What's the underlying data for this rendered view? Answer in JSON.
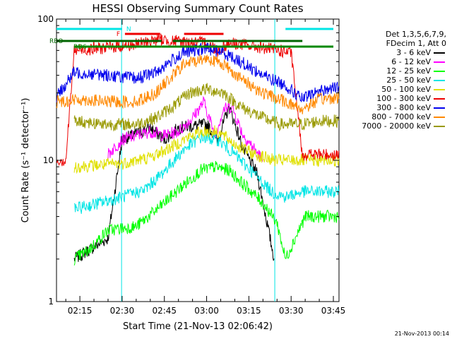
{
  "chart_data": {
    "type": "line",
    "title": "HESSI Observing Summary Count Rates",
    "xlabel": "Start Time (21-Nov-13 02:06:42)",
    "ylabel": "Count Rate (s⁻¹ detector⁻¹)",
    "y_scale": "log",
    "ylim": [
      1,
      100
    ],
    "xlim_minutes_of_day": [
      126.7,
      227.0
    ],
    "x_tick_labels": [
      "02:15",
      "02:30",
      "02:45",
      "03:00",
      "03:15",
      "03:30",
      "03:45"
    ],
    "y_tick_labels": [
      "1",
      "10",
      "100"
    ],
    "legend_header": [
      "Det 1,3,5,6,7,9,",
      "FDecim 1, Att 0"
    ],
    "timestamp": "21-Nov-2013 00:14",
    "flags": {
      "N": {
        "color": "#00e5e5",
        "segments": [
          [
            126.7,
            150
          ],
          [
            208,
            225
          ]
        ]
      },
      "F": {
        "color": "#ee0000",
        "segments": [
          [
            151,
            163.5
          ],
          [
            172,
            186
          ]
        ]
      },
      "RBO": {
        "color": "#006400",
        "segments": [
          [
            126.7,
            164
          ],
          [
            168,
            214
          ]
        ]
      },
      "RD6": {
        "color": "#008800",
        "segments": [
          [
            133,
            164
          ],
          [
            164,
            225
          ]
        ]
      }
    },
    "saa_lines": [
      {
        "time": 149.8,
        "color": "#00e5e5"
      },
      {
        "time": 204.2,
        "color": "#00e5e5"
      }
    ],
    "series": [
      {
        "name": "3 - 6 keV",
        "color": "#000000",
        "points": [
          [
            133,
            2
          ],
          [
            145,
            2.8
          ],
          [
            150,
            14
          ],
          [
            160,
            17
          ],
          [
            165,
            14
          ],
          [
            170,
            17
          ],
          [
            180,
            18
          ],
          [
            184,
            14
          ],
          [
            188,
            24
          ],
          [
            193,
            12
          ],
          [
            198,
            8
          ],
          [
            204,
            2
          ]
        ]
      },
      {
        "name": "6 - 12 keV",
        "color": "#ff00ff",
        "points": [
          [
            145,
            11
          ],
          [
            150,
            14
          ],
          [
            160,
            16
          ],
          [
            165,
            15
          ],
          [
            170,
            16
          ],
          [
            175,
            20
          ],
          [
            179,
            26
          ],
          [
            183,
            15
          ],
          [
            186,
            23
          ],
          [
            189,
            24
          ],
          [
            193,
            15
          ],
          [
            197,
            12
          ],
          [
            200,
            10
          ]
        ]
      },
      {
        "name": "12 - 25 keV",
        "color": "#00ff00",
        "points": [
          [
            133,
            2
          ],
          [
            138,
            2.3
          ],
          [
            145,
            3.2
          ],
          [
            155,
            3.4
          ],
          [
            163,
            4.6
          ],
          [
            170,
            6.2
          ],
          [
            178,
            8.5
          ],
          [
            183,
            9
          ],
          [
            188,
            8.5
          ],
          [
            194,
            6.5
          ],
          [
            200,
            5
          ],
          [
            205,
            3.6
          ],
          [
            208,
            2
          ],
          [
            215,
            4
          ],
          [
            227,
            4
          ]
        ]
      },
      {
        "name": "25 - 50 keV",
        "color": "#00e5e5",
        "points": [
          [
            133,
            4.5
          ],
          [
            142,
            5
          ],
          [
            150,
            5.5
          ],
          [
            158,
            6.2
          ],
          [
            164,
            8
          ],
          [
            172,
            12
          ],
          [
            178,
            14.5
          ],
          [
            184,
            14
          ],
          [
            190,
            11
          ],
          [
            197,
            8
          ],
          [
            203,
            6
          ],
          [
            208,
            5.5
          ],
          [
            214,
            6
          ],
          [
            227,
            6
          ]
        ]
      },
      {
        "name": "50 - 100 keV",
        "color": "#e0e000",
        "points": [
          [
            133,
            9
          ],
          [
            150,
            9.5
          ],
          [
            160,
            10.5
          ],
          [
            166,
            12
          ],
          [
            172,
            14
          ],
          [
            178,
            16
          ],
          [
            184,
            16
          ],
          [
            190,
            13
          ],
          [
            197,
            11
          ],
          [
            204,
            10
          ],
          [
            214,
            10
          ],
          [
            227,
            10
          ]
        ]
      },
      {
        "name": "100 - 300 keV",
        "color": "#ee0000",
        "points": [
          [
            126.7,
            10
          ],
          [
            130,
            10
          ],
          [
            133,
            60
          ],
          [
            145,
            63
          ],
          [
            155,
            66
          ],
          [
            163,
            72
          ],
          [
            167,
            70
          ],
          [
            175,
            68
          ],
          [
            180,
            68
          ],
          [
            184,
            60
          ],
          [
            188,
            68
          ],
          [
            195,
            65
          ],
          [
            205,
            60
          ],
          [
            210,
            58
          ],
          [
            214,
            11
          ],
          [
            227,
            11
          ]
        ]
      },
      {
        "name": "300 - 800 keV",
        "color": "#0000ee",
        "points": [
          [
            126.7,
            28
          ],
          [
            133,
            42
          ],
          [
            145,
            40
          ],
          [
            155,
            38
          ],
          [
            162,
            42
          ],
          [
            167,
            50
          ],
          [
            172,
            58
          ],
          [
            180,
            62
          ],
          [
            186,
            58
          ],
          [
            192,
            50
          ],
          [
            200,
            40
          ],
          [
            208,
            34
          ],
          [
            214,
            27
          ],
          [
            220,
            31
          ],
          [
            227,
            33
          ]
        ]
      },
      {
        "name": "800 - 7000 keV",
        "color": "#ff8800",
        "points": [
          [
            126.7,
            26
          ],
          [
            135,
            27
          ],
          [
            145,
            26
          ],
          [
            155,
            26
          ],
          [
            162,
            30
          ],
          [
            167,
            38
          ],
          [
            172,
            48
          ],
          [
            180,
            53
          ],
          [
            186,
            48
          ],
          [
            192,
            38
          ],
          [
            200,
            30
          ],
          [
            208,
            26
          ],
          [
            214,
            23
          ],
          [
            220,
            27
          ],
          [
            227,
            28
          ]
        ]
      },
      {
        "name": "7000 - 20000 keV",
        "color": "#999900",
        "points": [
          [
            133,
            19
          ],
          [
            145,
            18
          ],
          [
            155,
            18
          ],
          [
            162,
            20
          ],
          [
            168,
            24
          ],
          [
            174,
            30
          ],
          [
            180,
            32
          ],
          [
            186,
            30
          ],
          [
            192,
            24
          ],
          [
            200,
            20
          ],
          [
            206,
            18
          ],
          [
            214,
            18
          ],
          [
            220,
            19
          ],
          [
            227,
            19
          ]
        ]
      }
    ]
  }
}
